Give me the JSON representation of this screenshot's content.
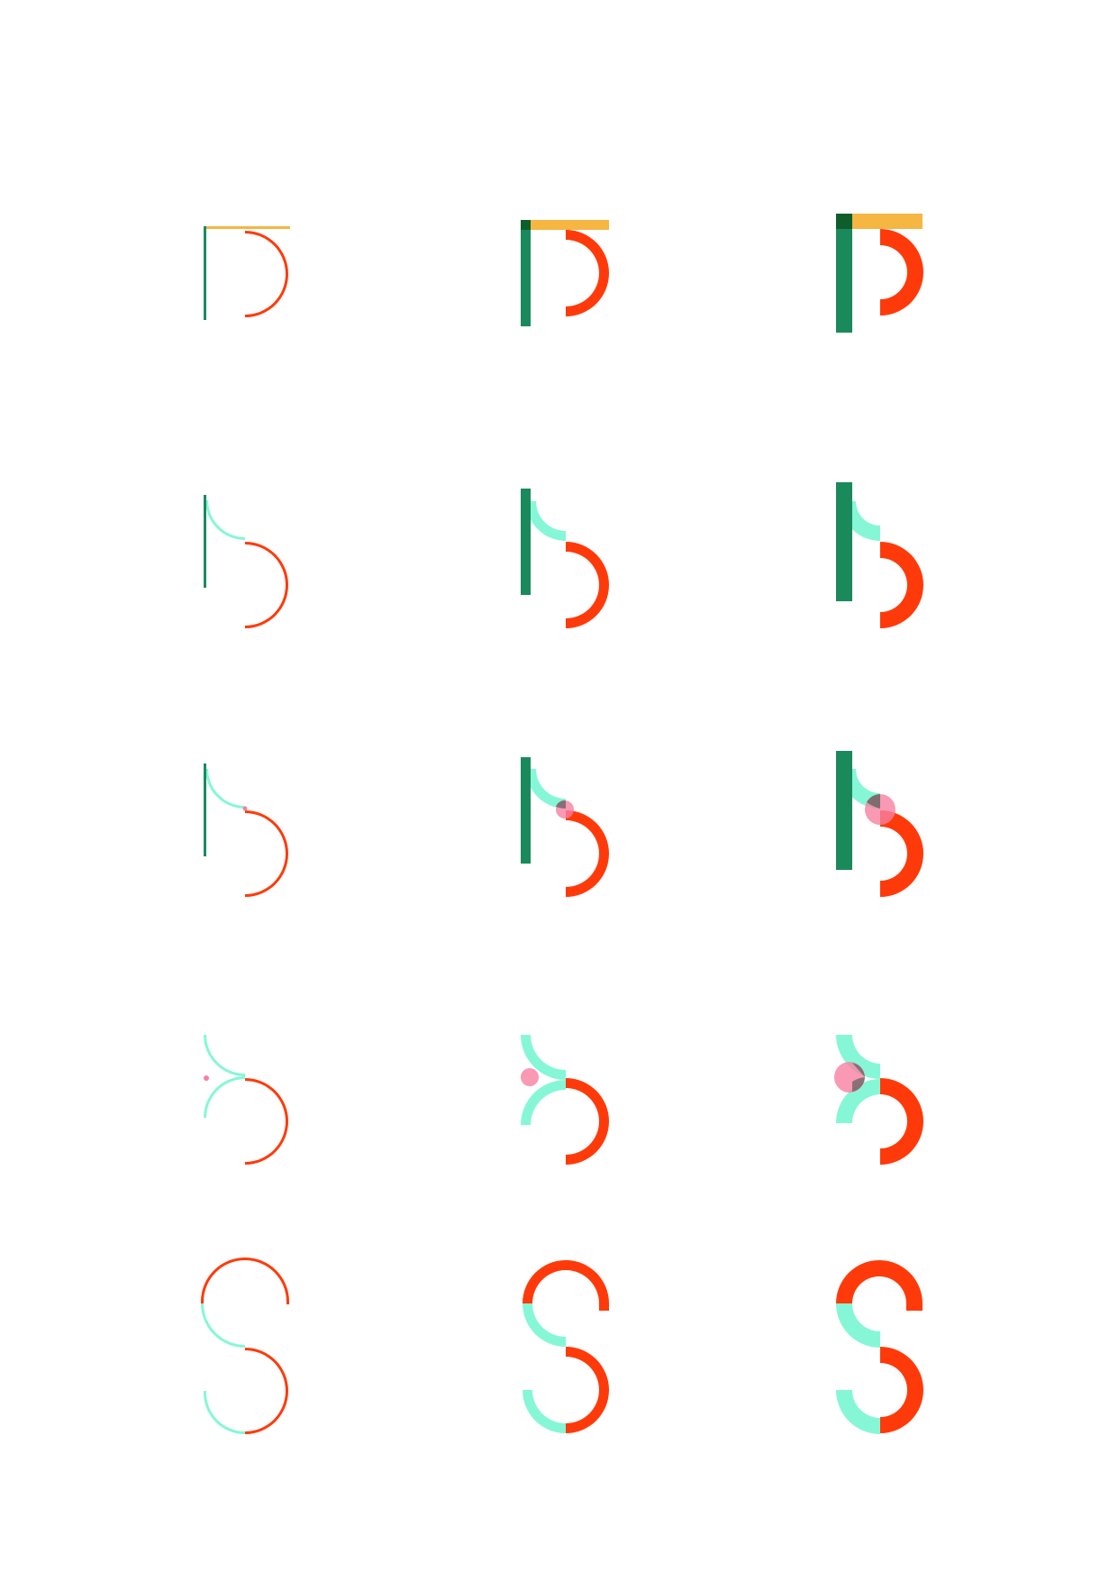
{
  "colors": {
    "stem": "#1a8a5c",
    "crossbar": "#f5b642",
    "bowl": "#ff3a0a",
    "arc": "#86f7d6",
    "dot": "#f77fa0",
    "dot_overlap": "#5e5e5e",
    "stem_overlap": "#0e5e2c",
    "background": "#ffffff"
  },
  "grid": {
    "columns": 3,
    "weights": [
      "thin",
      "medium",
      "bold"
    ],
    "rows": [
      {
        "id": "row-1",
        "parts": [
          "stem-full",
          "crossbar",
          "bowl-upper"
        ]
      },
      {
        "id": "row-2",
        "parts": [
          "stem-full",
          "arc-upper",
          "bowl-lower"
        ]
      },
      {
        "id": "row-3",
        "parts": [
          "stem-full",
          "arc-upper",
          "dot",
          "bowl-lower"
        ]
      },
      {
        "id": "row-4",
        "parts": [
          "arc-upper",
          "arc-lower",
          "dot",
          "bowl-lower"
        ]
      },
      {
        "id": "row-5",
        "parts": [
          "bowl-top",
          "arc-left",
          "bowl-lower",
          "arc-bottom"
        ]
      }
    ]
  }
}
